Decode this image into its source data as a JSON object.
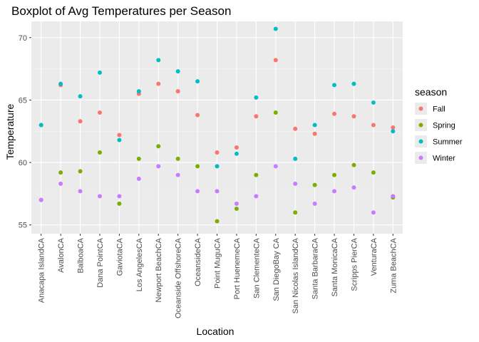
{
  "chart_data": {
    "type": "scatter",
    "title": "Boxplot of Avg Temperatures per Season",
    "xlabel": "Location",
    "ylabel": "Temperature",
    "ylim": [
      54.3,
      71.3
    ],
    "yticks": [
      55,
      60,
      65,
      70
    ],
    "grid": true,
    "legend": {
      "title": "season",
      "position": "right"
    },
    "categories": [
      "Anacapa IslandCA",
      "AvalonCA",
      "BalboaCA",
      "Dana PointCA",
      "GaviotaCA",
      "Los AngelesCA",
      "Newport BeachCA",
      "Oceanside OffshoreCA",
      "OceansideCA",
      "Point MuguCA",
      "Port HuenemeCA",
      "San ClementeCA",
      "San DiegoBay CA",
      "San Nicolas IslandCA",
      "Santa BarbaraCA",
      "Santa MonicaCA",
      "Scripps PierCA",
      "VenturaCA",
      "Zuma BeachCA"
    ],
    "series": [
      {
        "name": "Fall",
        "color": "#F8766D",
        "values": [
          63.0,
          66.2,
          63.3,
          64.0,
          62.2,
          65.5,
          66.3,
          65.7,
          63.8,
          60.8,
          61.2,
          63.7,
          68.2,
          62.7,
          62.3,
          63.9,
          63.7,
          63.0,
          62.8
        ]
      },
      {
        "name": "Spring",
        "color": "#7CAE00",
        "values": [
          57.0,
          59.2,
          59.3,
          60.8,
          56.7,
          60.3,
          61.3,
          60.3,
          59.7,
          55.3,
          56.3,
          59.0,
          64.0,
          56.0,
          58.2,
          59.0,
          59.8,
          59.2,
          57.2
        ]
      },
      {
        "name": "Summer",
        "color": "#00BFC4",
        "values": [
          63.0,
          66.3,
          65.3,
          67.2,
          61.8,
          65.7,
          68.2,
          67.3,
          66.5,
          59.7,
          60.7,
          65.2,
          70.7,
          60.3,
          63.0,
          66.2,
          66.3,
          64.8,
          62.5
        ]
      },
      {
        "name": "Winter",
        "color": "#C77CFF",
        "values": [
          57.0,
          58.3,
          57.7,
          57.3,
          57.3,
          58.7,
          59.7,
          59.0,
          57.7,
          57.7,
          56.7,
          57.3,
          59.7,
          58.3,
          56.7,
          57.7,
          58.0,
          56.0,
          57.3
        ]
      }
    ]
  }
}
